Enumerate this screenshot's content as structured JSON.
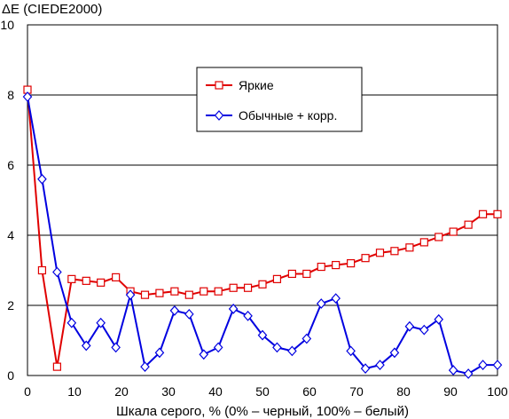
{
  "chart_data": {
    "type": "line",
    "ylabel": "ΔE (CIEDE2000)",
    "xlabel": "Шкала серого, % (0% – черный, 100% – белый)",
    "xlim": [
      0,
      100
    ],
    "ylim": [
      0,
      10
    ],
    "xticks": [
      "0",
      "10",
      "20",
      "30",
      "40",
      "50",
      "60",
      "70",
      "80",
      "90",
      "100"
    ],
    "yticks": [
      "0",
      "2",
      "4",
      "6",
      "8",
      "10"
    ],
    "grid": "horizontal",
    "legend_position": "top-center",
    "x": [
      0,
      3.1,
      6.3,
      9.4,
      12.5,
      15.6,
      18.8,
      21.9,
      25,
      28.1,
      31.3,
      34.4,
      37.5,
      40.6,
      43.8,
      46.9,
      50,
      53.1,
      56.3,
      59.4,
      62.5,
      65.6,
      68.8,
      71.9,
      75,
      78.1,
      81.3,
      84.4,
      87.5,
      90.6,
      93.8,
      96.9,
      100
    ],
    "series": [
      {
        "name": "Яркие",
        "color": "#e00000",
        "marker": "square",
        "values": [
          8.15,
          3.0,
          0.25,
          2.75,
          2.7,
          2.65,
          2.8,
          2.4,
          2.3,
          2.35,
          2.4,
          2.3,
          2.4,
          2.4,
          2.5,
          2.5,
          2.6,
          2.75,
          2.9,
          2.9,
          3.1,
          3.15,
          3.2,
          3.35,
          3.5,
          3.55,
          3.65,
          3.8,
          3.95,
          4.1,
          4.3,
          4.6,
          4.6
        ]
      },
      {
        "name": "Обычные + корр.",
        "color": "#0000e0",
        "marker": "diamond",
        "values": [
          7.95,
          5.6,
          2.95,
          1.5,
          0.85,
          1.5,
          0.8,
          2.3,
          0.25,
          0.65,
          1.85,
          1.75,
          0.6,
          0.8,
          1.9,
          1.7,
          1.15,
          0.8,
          0.7,
          1.05,
          2.05,
          2.2,
          0.7,
          0.2,
          0.3,
          0.65,
          1.4,
          1.3,
          1.6,
          0.15,
          0.05,
          0.3,
          0.3
        ]
      }
    ]
  }
}
